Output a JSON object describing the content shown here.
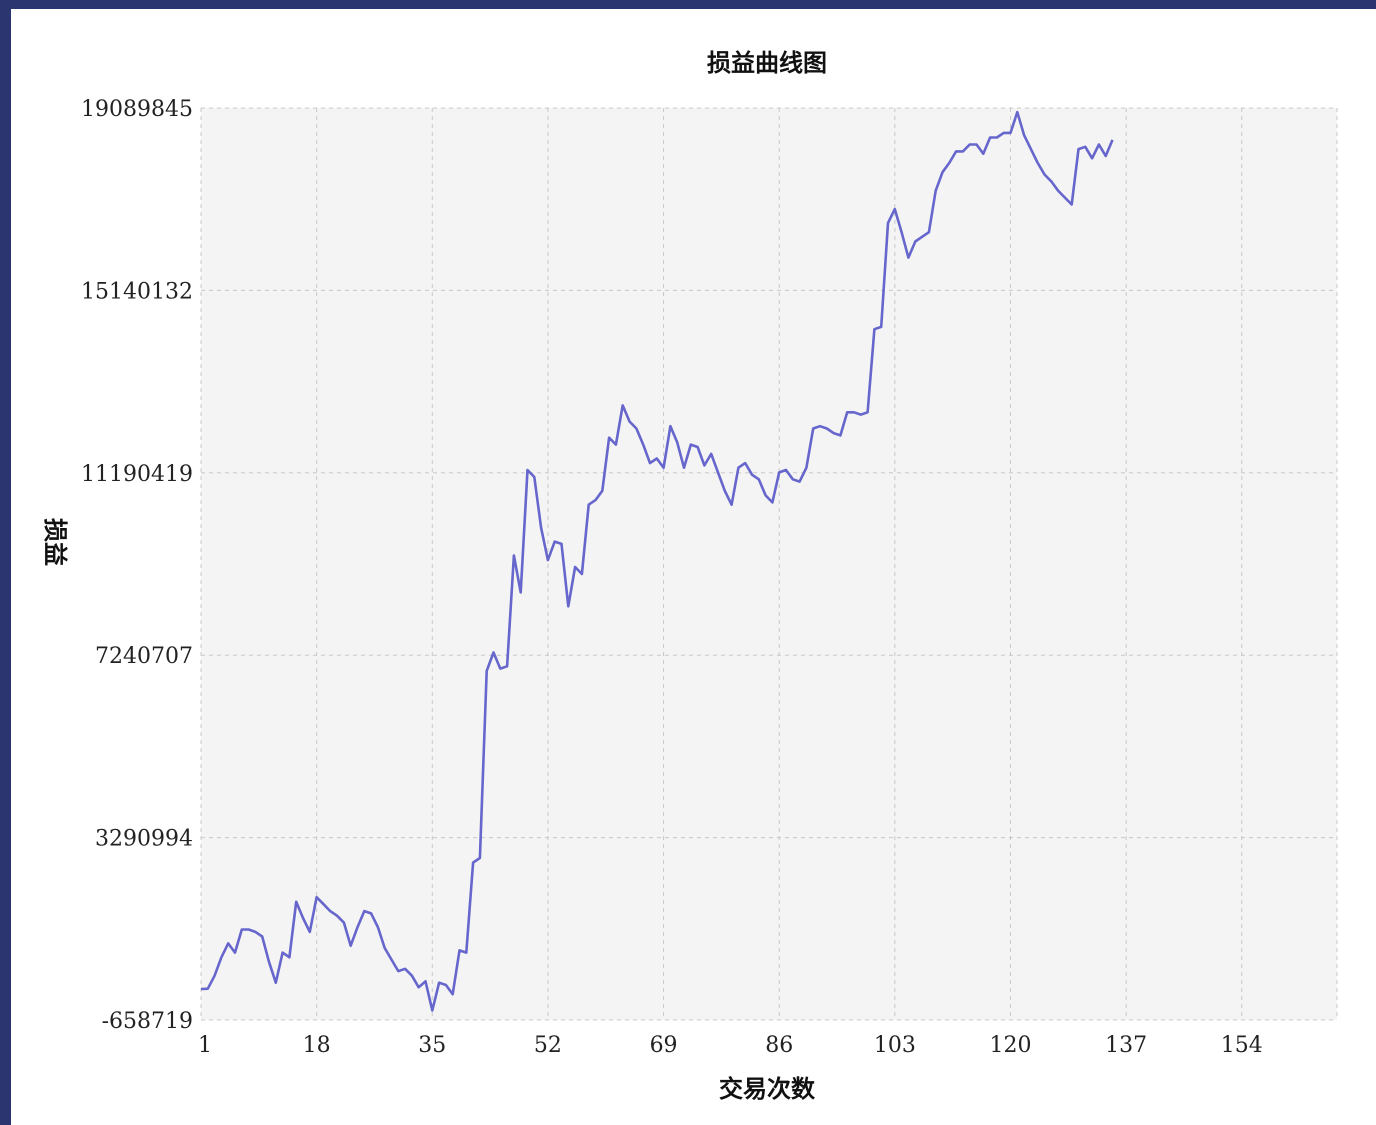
{
  "chart_data": {
    "type": "line",
    "title": "损益曲线图",
    "xlabel": "交易次数",
    "ylabel": "损益",
    "xlim": [
      1,
      168
    ],
    "ylim": [
      -658719,
      19089845
    ],
    "xticks": [
      1,
      18,
      35,
      52,
      69,
      86,
      103,
      120,
      137,
      154
    ],
    "yticks": [
      -658719,
      3290994,
      7240707,
      11190419,
      15140132,
      19089845
    ],
    "grid": true,
    "series": [
      {
        "color": "#6666cc",
        "points": [
          [
            1,
            10000
          ],
          [
            2,
            20000
          ],
          [
            3,
            300000
          ],
          [
            4,
            700000
          ],
          [
            5,
            1000000
          ],
          [
            6,
            800000
          ],
          [
            7,
            1300000
          ],
          [
            8,
            1300000
          ],
          [
            9,
            1250000
          ],
          [
            10,
            1150000
          ],
          [
            11,
            600000
          ],
          [
            12,
            150000
          ],
          [
            13,
            800000
          ],
          [
            14,
            700000
          ],
          [
            15,
            1900000
          ],
          [
            16,
            1550000
          ],
          [
            17,
            1250000
          ],
          [
            18,
            2000000
          ],
          [
            19,
            1850000
          ],
          [
            20,
            1700000
          ],
          [
            21,
            1600000
          ],
          [
            22,
            1450000
          ],
          [
            23,
            950000
          ],
          [
            24,
            1350000
          ],
          [
            25,
            1700000
          ],
          [
            26,
            1650000
          ],
          [
            27,
            1350000
          ],
          [
            28,
            900000
          ],
          [
            29,
            650000
          ],
          [
            30,
            400000
          ],
          [
            31,
            450000
          ],
          [
            32,
            300000
          ],
          [
            33,
            50000
          ],
          [
            34,
            180000
          ],
          [
            35,
            -450000
          ],
          [
            36,
            150000
          ],
          [
            37,
            100000
          ],
          [
            38,
            -100000
          ],
          [
            39,
            850000
          ],
          [
            40,
            800000
          ],
          [
            41,
            2750000
          ],
          [
            42,
            2850000
          ],
          [
            43,
            6900000
          ],
          [
            44,
            7300000
          ],
          [
            45,
            6950000
          ],
          [
            46,
            7000000
          ],
          [
            47,
            9400000
          ],
          [
            48,
            8600000
          ],
          [
            49,
            11250000
          ],
          [
            50,
            11100000
          ],
          [
            51,
            10000000
          ],
          [
            52,
            9300000
          ],
          [
            53,
            9700000
          ],
          [
            54,
            9650000
          ],
          [
            55,
            8300000
          ],
          [
            56,
            9150000
          ],
          [
            57,
            9000000
          ],
          [
            58,
            10500000
          ],
          [
            59,
            10600000
          ],
          [
            60,
            10800000
          ],
          [
            61,
            11950000
          ],
          [
            62,
            11800000
          ],
          [
            63,
            12650000
          ],
          [
            64,
            12300000
          ],
          [
            65,
            12150000
          ],
          [
            66,
            11800000
          ],
          [
            67,
            11400000
          ],
          [
            68,
            11500000
          ],
          [
            69,
            11300000
          ],
          [
            70,
            12200000
          ],
          [
            71,
            11850000
          ],
          [
            72,
            11300000
          ],
          [
            73,
            11800000
          ],
          [
            74,
            11750000
          ],
          [
            75,
            11350000
          ],
          [
            76,
            11600000
          ],
          [
            77,
            11200000
          ],
          [
            78,
            10800000
          ],
          [
            79,
            10500000
          ],
          [
            80,
            11300000
          ],
          [
            81,
            11400000
          ],
          [
            82,
            11150000
          ],
          [
            83,
            11050000
          ],
          [
            84,
            10700000
          ],
          [
            85,
            10550000
          ],
          [
            86,
            11200000
          ],
          [
            87,
            11250000
          ],
          [
            88,
            11050000
          ],
          [
            89,
            11000000
          ],
          [
            90,
            11300000
          ],
          [
            91,
            12150000
          ],
          [
            92,
            12200000
          ],
          [
            93,
            12150000
          ],
          [
            94,
            12050000
          ],
          [
            95,
            12000000
          ],
          [
            96,
            12500000
          ],
          [
            97,
            12500000
          ],
          [
            98,
            12450000
          ],
          [
            99,
            12500000
          ],
          [
            100,
            14300000
          ],
          [
            101,
            14350000
          ],
          [
            102,
            16600000
          ],
          [
            103,
            16900000
          ],
          [
            104,
            16400000
          ],
          [
            105,
            15850000
          ],
          [
            106,
            16200000
          ],
          [
            107,
            16300000
          ],
          [
            108,
            16400000
          ],
          [
            109,
            17300000
          ],
          [
            110,
            17700000
          ],
          [
            111,
            17900000
          ],
          [
            112,
            18150000
          ],
          [
            113,
            18150000
          ],
          [
            114,
            18300000
          ],
          [
            115,
            18300000
          ],
          [
            116,
            18100000
          ],
          [
            117,
            18450000
          ],
          [
            118,
            18450000
          ],
          [
            119,
            18550000
          ],
          [
            120,
            18550000
          ],
          [
            121,
            19000000
          ],
          [
            122,
            18500000
          ],
          [
            123,
            18200000
          ],
          [
            124,
            17900000
          ],
          [
            125,
            17650000
          ],
          [
            126,
            17500000
          ],
          [
            127,
            17300000
          ],
          [
            128,
            17150000
          ],
          [
            129,
            17000000
          ],
          [
            130,
            18200000
          ],
          [
            131,
            18250000
          ],
          [
            132,
            18000000
          ],
          [
            133,
            18300000
          ],
          [
            134,
            18050000
          ],
          [
            135,
            18400000
          ]
        ]
      }
    ]
  }
}
